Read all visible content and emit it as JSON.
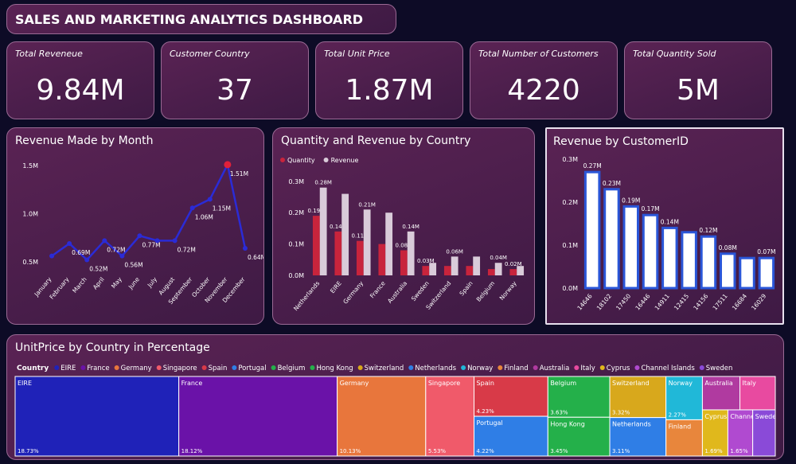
{
  "header": {
    "title": "SALES AND MARKETING ANALYTICS DASHBOARD"
  },
  "kpis": [
    {
      "label": "Total Reveneue",
      "value": "9.84M"
    },
    {
      "label": "Customer Country",
      "value": "37"
    },
    {
      "label": "Total Unit Price",
      "value": "1.87M"
    },
    {
      "label": "Total Number of Customers",
      "value": "4220"
    },
    {
      "label": "Total Quantity Sold",
      "value": "5M"
    }
  ],
  "chart_data": [
    {
      "type": "line",
      "title": "Revenue Made by Month",
      "categories": [
        "January",
        "February",
        "March",
        "April",
        "May",
        "June",
        "July",
        "August",
        "September",
        "October",
        "November",
        "December"
      ],
      "values": [
        0.56,
        0.69,
        0.52,
        0.72,
        0.56,
        0.77,
        0.72,
        0.72,
        1.06,
        1.15,
        1.51,
        0.64
      ],
      "value_labels": [
        null,
        "0.69M",
        "0.52M",
        "0.72M",
        "0.56M",
        "0.77M",
        null,
        "0.72M",
        "1.06M",
        "1.15M",
        "1.51M",
        "0.64M"
      ],
      "color": "#2b2bd6",
      "max_color": "#e0203a",
      "ylim": [
        0.4,
        1.6
      ],
      "yticks": [
        {
          "value": 0.5,
          "label": "0.5M"
        },
        {
          "value": 1.0,
          "label": "1.0M"
        },
        {
          "value": 1.5,
          "label": "1.5M"
        }
      ]
    },
    {
      "type": "grouped_bar",
      "title": "Quantity and Revenue by Country",
      "categories": [
        "Netherlands",
        "EIRE",
        "Germany",
        "France",
        "Australia",
        "Sweden",
        "Switzerland",
        "Spain",
        "Belgium",
        "Norway"
      ],
      "series": [
        {
          "name": "Quantity",
          "color": "#c8243c",
          "values": [
            0.19,
            0.14,
            0.11,
            0.1,
            0.08,
            0.03,
            0.03,
            0.03,
            0.02,
            0.02
          ],
          "value_labels": [
            "0.19M",
            "0.14M",
            "0.11M",
            null,
            "0.08M",
            "0.03M",
            null,
            null,
            null,
            "0.02M"
          ]
        },
        {
          "name": "Revenue",
          "color": "#d9cbd9",
          "values": [
            0.28,
            0.26,
            0.21,
            0.2,
            0.14,
            0.04,
            0.06,
            0.06,
            0.04,
            0.03
          ],
          "value_labels": [
            "0.28M",
            null,
            "0.21M",
            null,
            "0.14M",
            null,
            "0.06M",
            null,
            "0.04M",
            null
          ]
        }
      ],
      "ylim": [
        0,
        0.33
      ],
      "yticks": [
        {
          "value": 0,
          "label": "0.0M"
        },
        {
          "value": 0.1,
          "label": "0.1M"
        },
        {
          "value": 0.2,
          "label": "0.2M"
        },
        {
          "value": 0.3,
          "label": "0.3M"
        }
      ]
    },
    {
      "type": "bar",
      "title": "Revenue by CustomerID",
      "categories": [
        "14646",
        "18102",
        "17450",
        "16446",
        "14911",
        "12415",
        "14156",
        "17511",
        "16684",
        "16029"
      ],
      "values": [
        0.27,
        0.23,
        0.19,
        0.17,
        0.14,
        0.13,
        0.12,
        0.08,
        0.07,
        0.07
      ],
      "value_labels": [
        "0.27M",
        "0.23M",
        "0.19M",
        "0.17M",
        "0.14M",
        null,
        "0.12M",
        "0.08M",
        null,
        "0.07M"
      ],
      "color": "#ffffff",
      "edge_color": "#2a56d8",
      "ylim": [
        0,
        0.3
      ],
      "yticks": [
        {
          "value": 0,
          "label": "0.0M"
        },
        {
          "value": 0.1,
          "label": "0.1M"
        },
        {
          "value": 0.2,
          "label": "0.2M"
        },
        {
          "value": 0.3,
          "label": "0.3M"
        }
      ]
    },
    {
      "type": "treemap",
      "title": "UnitPrice by Country in Percentage",
      "legend_title": "Country",
      "categories": [
        "EIRE",
        "France",
        "Germany",
        "Singapore",
        "Spain",
        "Portugal",
        "Belgium",
        "Hong Kong",
        "Switzerland",
        "Netherlands",
        "Norway",
        "Finland",
        "Australia",
        "Italy",
        "Cyprus",
        "Channel Islands",
        "Sweden"
      ],
      "values": [
        18.73,
        18.12,
        10.13,
        5.53,
        4.23,
        4.22,
        3.63,
        3.45,
        3.32,
        3.11,
        2.27,
        1.9,
        1.8,
        1.7,
        1.69,
        1.65,
        1.5
      ],
      "value_labels": [
        "18.73%",
        "18.12%",
        "10.13%",
        "5.53%",
        "4.23%",
        "4.22%",
        "3.63%",
        "3.45%",
        "3.32%",
        "3.11%",
        "2.27%",
        null,
        null,
        null,
        "1.69%",
        "1.65%",
        null
      ],
      "colors": [
        "#1f22b8",
        "#6a12a8",
        "#e8763c",
        "#f05a6a",
        "#d83a48",
        "#2f7ee6",
        "#24b04a",
        "#24b04a",
        "#d8a81c",
        "#2f7ee6",
        "#20b8d8",
        "#e8863c",
        "#b03aa0",
        "#e84aa0",
        "#e0b81c",
        "#b04ad0",
        "#8a4ad8"
      ]
    }
  ]
}
